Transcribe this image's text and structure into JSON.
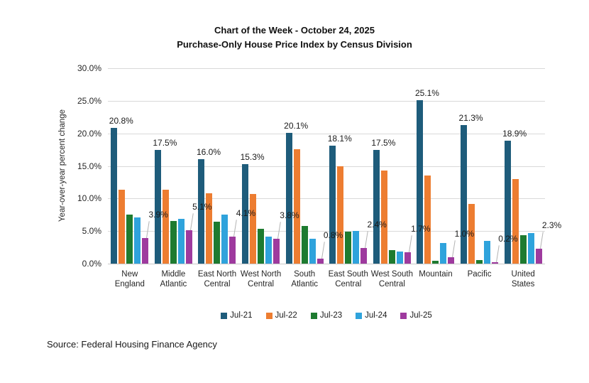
{
  "title": {
    "line1": "Chart of the Week - October 24, 2025",
    "line2": "Purchase-Only House Price Index by Census Division"
  },
  "y_axis": {
    "title": "Year-over-year percent change",
    "tick_labels_top_to_bottom": [
      "30.0%",
      "25.0%",
      "20.0%",
      "15.0%",
      "10.0%",
      "5.0%",
      "0.0%"
    ],
    "min": 0,
    "max": 30,
    "step": 5
  },
  "source_note": "Source: Federal Housing Finance Agency",
  "chart_data": {
    "type": "bar",
    "title": "Chart of the Week - October 24, 2025",
    "subtitle": "Purchase-Only House Price Index by Census Division",
    "xlabel": "",
    "ylabel": "Year-over-year percent change",
    "ylim": [
      0,
      30
    ],
    "grid": true,
    "legend_position": "bottom",
    "categories": [
      "New England",
      "Middle Atlantic",
      "East North Central",
      "West North Central",
      "South Atlantic",
      "East South Central",
      "West South Central",
      "Mountain",
      "Pacific",
      "United States"
    ],
    "series": [
      {
        "name": "Jul-21",
        "color": "#1E5C7B",
        "data_labels": "above",
        "values": [
          20.8,
          17.5,
          16.0,
          15.3,
          20.1,
          18.1,
          17.5,
          25.1,
          21.3,
          18.9
        ]
      },
      {
        "name": "Jul-22",
        "color": "#ED7D31",
        "data_labels": "none",
        "values": [
          11.3,
          11.4,
          10.8,
          10.7,
          17.6,
          15.0,
          14.3,
          13.5,
          9.2,
          13.0
        ]
      },
      {
        "name": "Jul-23",
        "color": "#1E7B30",
        "data_labels": "none",
        "values": [
          7.5,
          6.6,
          6.4,
          5.3,
          5.8,
          4.9,
          2.1,
          0.4,
          0.5,
          4.4
        ]
      },
      {
        "name": "Jul-24",
        "color": "#2FA3DC",
        "data_labels": "none",
        "values": [
          7.1,
          6.9,
          7.5,
          4.2,
          3.8,
          5.0,
          1.9,
          3.2,
          3.5,
          4.7
        ]
      },
      {
        "name": "Jul-25",
        "color": "#9E3A9E",
        "data_labels": "callout",
        "values": [
          3.9,
          5.1,
          4.1,
          3.8,
          0.8,
          2.4,
          1.7,
          1.0,
          0.2,
          2.3
        ]
      }
    ]
  }
}
